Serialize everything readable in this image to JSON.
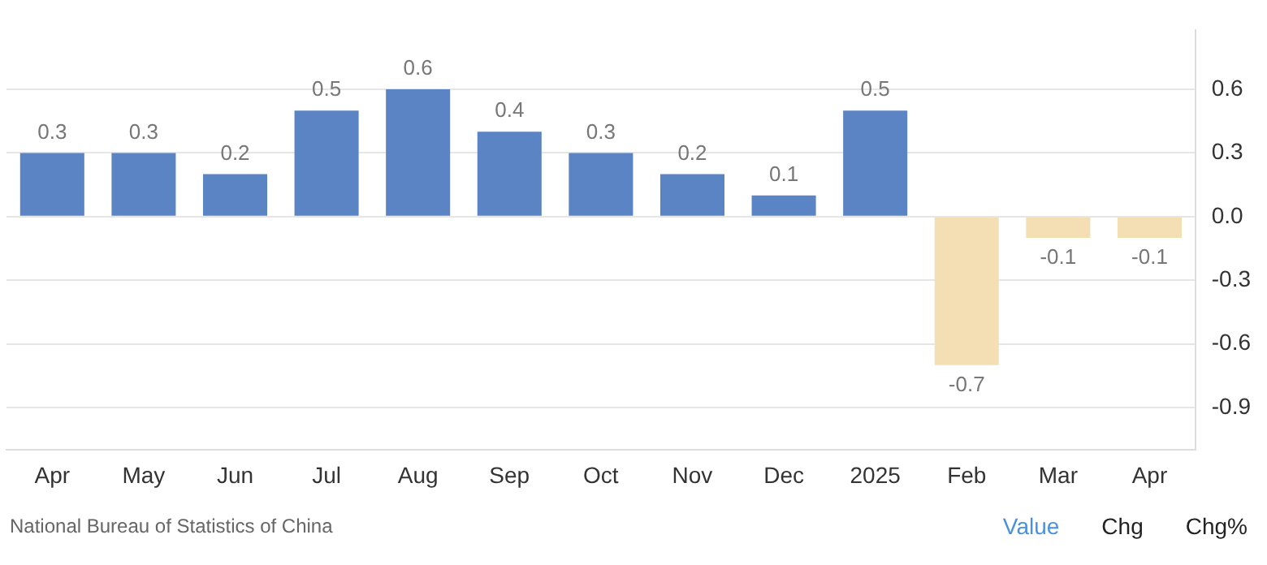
{
  "chart_data": {
    "type": "bar",
    "categories": [
      "Apr",
      "May",
      "Jun",
      "Jul",
      "Aug",
      "Sep",
      "Oct",
      "Nov",
      "Dec",
      "2025",
      "Feb",
      "Mar",
      "Apr"
    ],
    "values": [
      0.3,
      0.3,
      0.2,
      0.5,
      0.6,
      0.4,
      0.3,
      0.2,
      0.1,
      0.5,
      -0.7,
      -0.1,
      -0.1
    ],
    "colors": [
      "#5b84c4",
      "#5b84c4",
      "#5b84c4",
      "#5b84c4",
      "#5b84c4",
      "#5b84c4",
      "#5b84c4",
      "#5b84c4",
      "#5b84c4",
      "#5b84c4",
      "#f4deb4",
      "#f4deb4",
      "#f4deb4"
    ],
    "ylim": [
      -1.1,
      0.88
    ],
    "yticks": [
      -0.9,
      -0.6,
      -0.3,
      {
        "value": 0,
        "label": "0.0"
      },
      0.3,
      0.6
    ],
    "grid": "y",
    "legend": false,
    "data_labels": true,
    "annotations": [
      "National Bureau of Statistics of China",
      "Value",
      "Chg",
      "Chg%"
    ]
  }
}
